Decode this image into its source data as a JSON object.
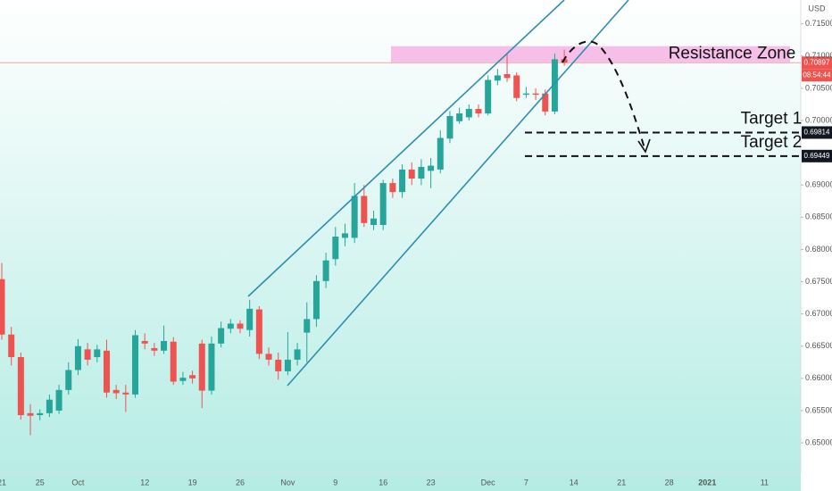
{
  "chart_data": {
    "type": "candlestick",
    "currency": "USD",
    "categories": [
      "21",
      null,
      null,
      null,
      "25",
      null,
      null,
      null,
      "Oct",
      null,
      null,
      null,
      null,
      null,
      null,
      "12",
      null,
      null,
      null,
      null,
      "19",
      null,
      null,
      null,
      null,
      "26",
      null,
      null,
      null,
      null,
      "Nov",
      null,
      null,
      null,
      null,
      "9",
      null,
      null,
      null,
      null,
      "16",
      null,
      null,
      null,
      null,
      "23",
      null,
      null,
      null,
      null,
      null,
      "Dec",
      null,
      null,
      null,
      "7",
      null,
      null,
      null,
      null,
      "14",
      null,
      null,
      null,
      null,
      "21",
      null,
      null,
      null,
      null,
      "28",
      null,
      null,
      null,
      "2021",
      null,
      null,
      null,
      null,
      null,
      "11",
      null,
      null,
      null
    ],
    "open": [
      0.6754,
      0.6668,
      0.6633,
      0.6546,
      0.6543,
      0.6546,
      0.655,
      0.6582,
      0.6613,
      0.6645,
      0.6633,
      0.6643,
      0.6582,
      0.6578,
      0.6575,
      0.6658,
      0.6647,
      0.6643,
      0.6657,
      0.6596,
      0.6605,
      0.6654,
      0.6581,
      0.6654,
      0.6677,
      0.6685,
      0.6675,
      0.6707,
      0.6638,
      0.6629,
      0.6611,
      0.6629,
      0.6671,
      0.6692,
      0.6751,
      0.6785,
      0.6818,
      0.6818,
      0.6883,
      0.6838,
      0.6838,
      0.6903,
      0.6889,
      0.6924,
      0.691,
      0.6922,
      0.6924,
      0.6972,
      0.6999,
      0.7005,
      0.7018,
      0.7011,
      0.7062,
      0.7072,
      0.707,
      0.704,
      0.7042,
      0.7042,
      0.7014,
      0.7095,
      null,
      null,
      null,
      null,
      null,
      null,
      null,
      null,
      null,
      null,
      null,
      null,
      null,
      null,
      null,
      null,
      null,
      null,
      null,
      null,
      null,
      null,
      null,
      null
    ],
    "high": [
      0.6779,
      0.668,
      0.664,
      0.656,
      0.6552,
      0.6575,
      0.659,
      0.6625,
      0.6661,
      0.6655,
      0.6652,
      0.666,
      0.659,
      0.659,
      0.6675,
      0.667,
      0.6655,
      0.6682,
      0.6664,
      0.661,
      0.6612,
      0.666,
      0.6665,
      0.6688,
      0.6692,
      0.669,
      0.6722,
      0.6712,
      0.6648,
      0.664,
      0.6672,
      0.6655,
      0.6718,
      0.676,
      0.6795,
      0.6835,
      0.684,
      0.6903,
      0.69,
      0.686,
      0.6908,
      0.691,
      0.6932,
      0.6935,
      0.694,
      0.6942,
      0.6985,
      0.7015,
      0.702,
      0.7025,
      0.7025,
      0.707,
      0.708,
      0.7104,
      0.7075,
      0.7052,
      0.705,
      0.7048,
      0.7104,
      0.711,
      null,
      null,
      null,
      null,
      null,
      null,
      null,
      null,
      null,
      null,
      null,
      null,
      null,
      null,
      null,
      null,
      null,
      null,
      null,
      null,
      null,
      null,
      null,
      null
    ],
    "low": [
      0.666,
      0.662,
      0.6536,
      0.6512,
      0.6535,
      0.654,
      0.6545,
      0.6575,
      0.6605,
      0.662,
      0.6625,
      0.657,
      0.6568,
      0.6548,
      0.657,
      0.6645,
      0.6635,
      0.6638,
      0.659,
      0.659,
      0.6592,
      0.6554,
      0.6575,
      0.6648,
      0.667,
      0.667,
      0.6665,
      0.663,
      0.662,
      0.6598,
      0.6605,
      0.662,
      0.6625,
      0.668,
      0.674,
      0.6775,
      0.6805,
      0.681,
      0.6835,
      0.683,
      0.683,
      0.688,
      0.688,
      0.69,
      0.69,
      0.6895,
      0.6918,
      0.6965,
      0.6995,
      0.7,
      0.7005,
      0.7008,
      0.7055,
      0.706,
      0.703,
      0.7035,
      0.7032,
      0.7008,
      0.701,
      0.7085,
      null,
      null,
      null,
      null,
      null,
      null,
      null,
      null,
      null,
      null,
      null,
      null,
      null,
      null,
      null,
      null,
      null,
      null,
      null,
      null,
      null,
      null,
      null,
      null
    ],
    "close": [
      0.6668,
      0.6633,
      0.6543,
      0.6542,
      0.6546,
      0.6567,
      0.6582,
      0.6613,
      0.665,
      0.6629,
      0.6645,
      0.6578,
      0.6577,
      0.6575,
      0.6667,
      0.6654,
      0.6643,
      0.6658,
      0.6595,
      0.6601,
      0.66,
      0.6581,
      0.6654,
      0.6678,
      0.6685,
      0.6677,
      0.6708,
      0.6638,
      0.6629,
      0.6611,
      0.6629,
      0.6645,
      0.6692,
      0.6751,
      0.6783,
      0.682,
      0.6825,
      0.6883,
      0.6841,
      0.6848,
      0.6903,
      0.6889,
      0.6924,
      0.691,
      0.6928,
      0.693,
      0.6973,
      0.7007,
      0.7011,
      0.7018,
      0.7011,
      0.7063,
      0.707,
      0.7066,
      0.7035,
      0.7042,
      0.704,
      0.7014,
      0.7095,
      0.70897,
      null,
      null,
      null,
      null,
      null,
      null,
      null,
      null,
      null,
      null,
      null,
      null,
      null,
      null,
      null,
      null,
      null,
      null,
      null,
      null,
      null,
      null,
      null,
      null
    ],
    "up_color": "#26a69a",
    "down_color": "#ef5350",
    "ylim": [
      0.6453,
      0.7187
    ],
    "yticks": [
      {
        "value": 0.715,
        "label": "0.71500"
      },
      {
        "value": 0.71,
        "label": "0.71000"
      },
      {
        "value": 0.705,
        "label": "0.70500"
      },
      {
        "value": 0.7,
        "label": "0.70000"
      },
      {
        "value": 0.69,
        "label": "0.69000"
      },
      {
        "value": 0.685,
        "label": "0.68500"
      },
      {
        "value": 0.68,
        "label": "0.68000"
      },
      {
        "value": 0.675,
        "label": "0.67500"
      },
      {
        "value": 0.67,
        "label": "0.67000"
      },
      {
        "value": 0.665,
        "label": "0.66500"
      },
      {
        "value": 0.66,
        "label": "0.66000"
      },
      {
        "value": 0.655,
        "label": "0.65500"
      },
      {
        "value": 0.65,
        "label": "0.65000"
      }
    ],
    "grid": false,
    "last_price": {
      "value": 0.70897,
      "label": "0.70897"
    },
    "countdown": "08:54:44",
    "resistance_zone": {
      "label": "Resistance Zone",
      "low": 0.70905,
      "high": 0.71154
    },
    "targets": [
      {
        "label": "Target 1",
        "value": 0.69814,
        "value_label": "0.69814"
      },
      {
        "label": "Target 2",
        "value": 0.69449,
        "value_label": "0.69449"
      }
    ]
  }
}
